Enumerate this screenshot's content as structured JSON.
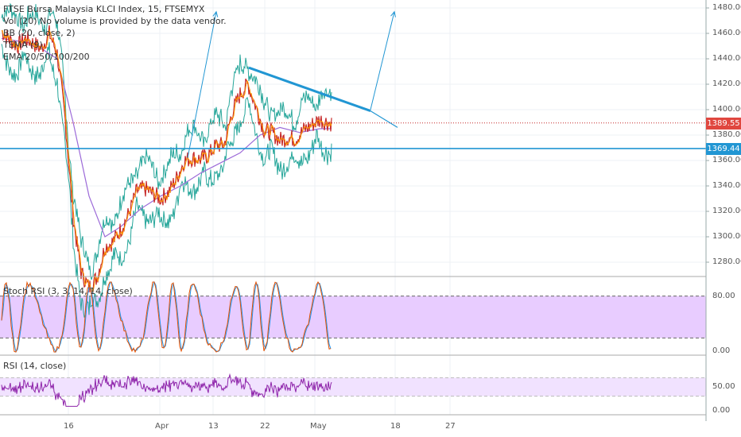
{
  "chart_data": {
    "type": "line",
    "title": "FTSE Bursa Malaysia KLCI Index, 15, FTSEMYX",
    "indicators": [
      "Vol (20)",
      "No volume is provided by the data vendor.",
      "BB (20, close, 2)",
      "TEMA (9)",
      "EMA 20/50/100/200"
    ],
    "y_ticks": [
      "1480.00",
      "1460.00",
      "1440.00",
      "1420.00",
      "1400.00",
      "1380.00",
      "1360.00",
      "1340.00",
      "1320.00",
      "1300.00",
      "1280.00"
    ],
    "y_values": [
      1480,
      1460,
      1440,
      1420,
      1400,
      1380,
      1360,
      1340,
      1320,
      1300,
      1280
    ],
    "ylim": [
      1266,
      1484
    ],
    "x_ticks": [
      "16",
      "Apr",
      "13",
      "22",
      "May",
      "18",
      "27"
    ],
    "price_labels": {
      "last": {
        "text": "1389.55",
        "value": 1389.55,
        "color": "#e0473f"
      },
      "hline": {
        "text": "1369.44",
        "value": 1369.44,
        "color": "#2196d3"
      }
    },
    "price_series": {
      "x": [
        0,
        10,
        20,
        30,
        40,
        50,
        60,
        70,
        80,
        90,
        100,
        110,
        120,
        130,
        140,
        150,
        160,
        170,
        180,
        190,
        200,
        210,
        220,
        230,
        240,
        250,
        260,
        270,
        280,
        290,
        300,
        310,
        320,
        330,
        340,
        350,
        360,
        370,
        380,
        390,
        400,
        410,
        415
      ],
      "close": [
        1462,
        1455,
        1450,
        1456,
        1452,
        1448,
        1460,
        1444,
        1392,
        1315,
        1272,
        1260,
        1268,
        1292,
        1296,
        1306,
        1318,
        1336,
        1338,
        1334,
        1330,
        1335,
        1346,
        1360,
        1362,
        1361,
        1364,
        1372,
        1372,
        1398,
        1412,
        1420,
        1402,
        1384,
        1382,
        1376,
        1378,
        1377,
        1384,
        1388,
        1392,
        1390,
        1389.55
      ]
    },
    "ema_series": {
      "x": [
        0,
        40,
        70,
        90,
        110,
        130,
        150,
        175,
        200,
        225,
        250,
        275,
        300,
        325,
        350,
        375,
        400,
        415
      ],
      "values": [
        1456,
        1452,
        1440,
        1390,
        1332,
        1300,
        1308,
        1322,
        1332,
        1340,
        1350,
        1358,
        1366,
        1380,
        1386,
        1382,
        1385,
        1385
      ]
    },
    "trendline": {
      "x": [
        313,
        466
      ],
      "y": [
        1433,
        1399
      ]
    },
    "projection_line": {
      "x": [
        466,
        500
      ],
      "y": [
        1399,
        1386
      ]
    },
    "arrows": [
      {
        "x": [
          236,
          272
        ],
        "y": [
          1362,
          1477
        ]
      },
      {
        "x": [
          466,
          496
        ],
        "y": [
          1400,
          1477
        ]
      }
    ],
    "stoch_rsi": {
      "title": "Stoch RSI (3, 3, 14, 14, close)",
      "y_ticks": [
        "80.00",
        "0.00"
      ],
      "band": [
        20,
        80
      ],
      "ylim": [
        0,
        100
      ]
    },
    "rsi": {
      "title": "RSI (14, close)",
      "y_ticks": [
        "50.00",
        "0.00"
      ],
      "band": [
        30,
        70
      ],
      "ylim": [
        0,
        100
      ]
    },
    "colors": {
      "price": "#c62828",
      "bollinger": "#26a69a",
      "ema": "#9c6ad8",
      "trendline": "#2196d3",
      "stoch_band": "#e8ccff",
      "rsi_line": "#8e24aa",
      "rsi_band": "#f1e2ff"
    }
  }
}
